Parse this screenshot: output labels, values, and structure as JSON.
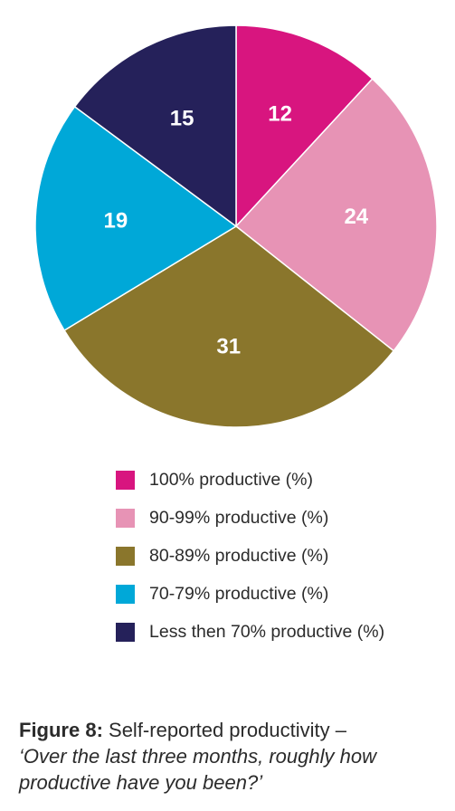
{
  "chart_data": {
    "type": "pie",
    "categories": [
      "100% productive (%)",
      "90-99% productive (%)",
      "80-89% productive (%)",
      "70-79% productive (%)",
      "Less then 70% productive (%)"
    ],
    "values": [
      12,
      24,
      31,
      19,
      15
    ],
    "colors": [
      "#d8157f",
      "#e793b5",
      "#8a762c",
      "#00a8d8",
      "#25215a"
    ],
    "legend_position": "bottom"
  },
  "caption": {
    "label": "Figure 8:",
    "text": " Self-reported productivity –",
    "question": "‘Over the last three months, roughly how productive have you been?’"
  }
}
